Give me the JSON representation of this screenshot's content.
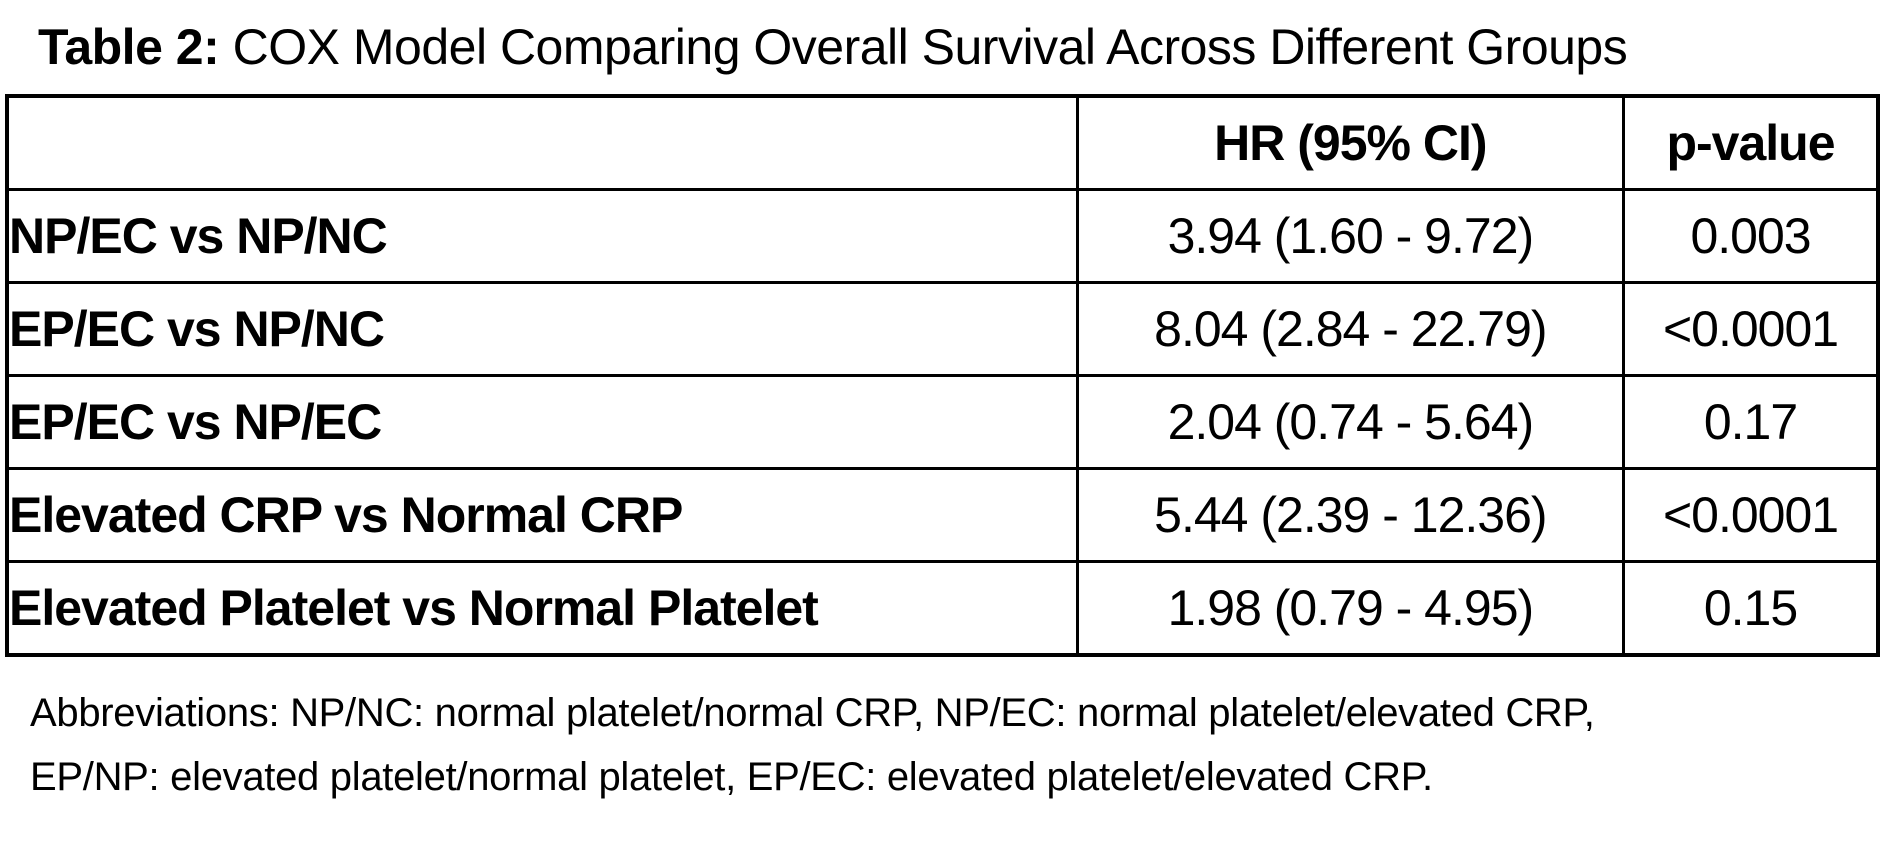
{
  "title": {
    "label": "Table 2:",
    "text": " COX Model Comparing Overall Survival Across Different Groups"
  },
  "table": {
    "columns": [
      "",
      "HR (95% CI)",
      "p-value"
    ],
    "rows": [
      {
        "group": "NP/EC vs NP/NC",
        "hr_ci": "3.94 (1.60 - 9.72)",
        "p_value": "0.003"
      },
      {
        "group": "EP/EC vs NP/NC",
        "hr_ci": "8.04 (2.84 - 22.79)",
        "p_value": "<0.0001"
      },
      {
        "group": "EP/EC vs NP/EC",
        "hr_ci": "2.04 (0.74 - 5.64)",
        "p_value": "0.17"
      },
      {
        "group": "Elevated CRP vs Normal CRP",
        "hr_ci": "5.44 (2.39 - 12.36)",
        "p_value": "<0.0001"
      },
      {
        "group": "Elevated Platelet vs Normal Platelet",
        "hr_ci": "1.98 (0.79 - 4.95)",
        "p_value": "0.15"
      }
    ]
  },
  "footnote": {
    "line1": "Abbreviations: NP/NC: normal platelet/normal CRP, NP/EC: normal platelet/elevated CRP,",
    "line2": "EP/NP: elevated platelet/normal platelet, EP/EC: elevated platelet/elevated CRP."
  },
  "colors": {
    "background": "#ffffff",
    "text": "#000000",
    "border": "#000000"
  }
}
